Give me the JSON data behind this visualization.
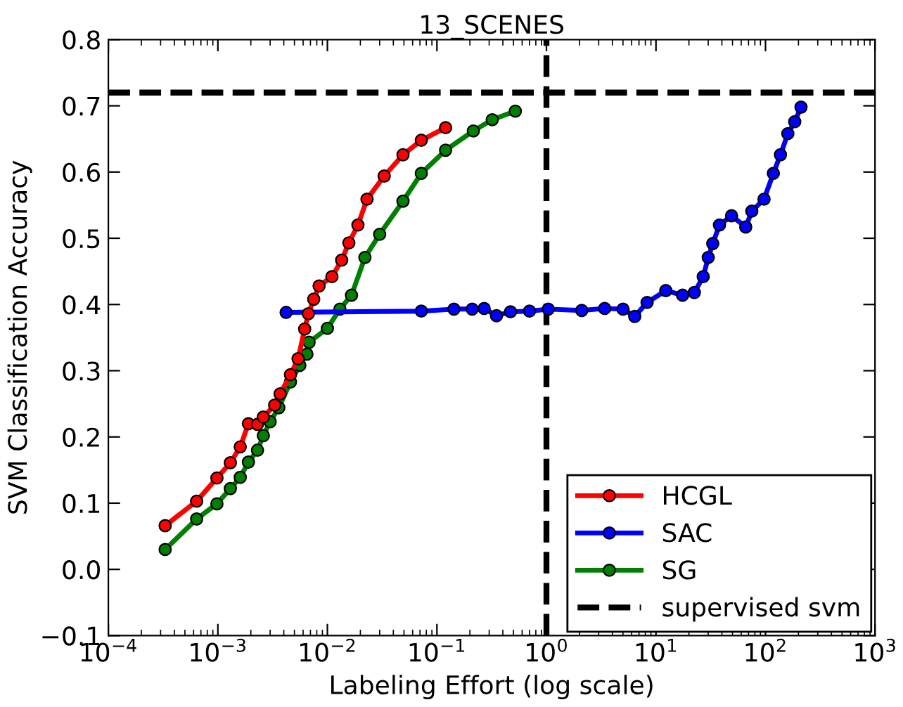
{
  "chart_data": {
    "type": "line",
    "title": "13_SCENES",
    "xlabel": "Labeling Effort (log scale)",
    "ylabel": "SVM Classification Accuracy",
    "log": "x",
    "marker": "circle",
    "line_style": "solid",
    "legend": "bottom right",
    "grid": false,
    "xlim": [
      0.0001,
      1000
    ],
    "ylim": [
      -0.1,
      0.8
    ],
    "xticks": [
      {
        "value": 0.0001,
        "label": "10$^{−4}$"
      },
      {
        "value": 0.001,
        "label": "10$^{−3}$"
      },
      {
        "value": 0.01,
        "label": "10$^{−2}$"
      },
      {
        "value": 0.1,
        "label": "10$^{−1}$"
      },
      {
        "value": 1,
        "label": "10$^{0}$"
      },
      {
        "value": 10,
        "label": "10$^{1}$"
      },
      {
        "value": 100,
        "label": "10$^{2}$"
      },
      {
        "value": 1000,
        "label": "10$^{3}$"
      }
    ],
    "yticks": [
      {
        "value": -0.1,
        "label": "−0.1"
      },
      {
        "value": 0.0,
        "label": "0.0"
      },
      {
        "value": 0.1,
        "label": "0.1"
      },
      {
        "value": 0.2,
        "label": "0.2"
      },
      {
        "value": 0.3,
        "label": "0.3"
      },
      {
        "value": 0.4,
        "label": "0.4"
      },
      {
        "value": 0.5,
        "label": "0.5"
      },
      {
        "value": 0.6,
        "label": "0.6"
      },
      {
        "value": 0.7,
        "label": "0.7"
      },
      {
        "value": 0.8,
        "label": "0.8"
      }
    ],
    "series": [
      {
        "name": "HCGL",
        "color": "#ff0000",
        "x": [
          0.00033,
          0.00064,
          0.00098,
          0.0013,
          0.0016,
          0.0019,
          0.0023,
          0.0026,
          0.0033,
          0.0037,
          0.0046,
          0.0054,
          0.0062,
          0.0067,
          0.0075,
          0.0084,
          0.011,
          0.0135,
          0.0157,
          0.019,
          0.023,
          0.033,
          0.049,
          0.072,
          0.12
        ],
        "values": [
          0.066,
          0.103,
          0.138,
          0.161,
          0.185,
          0.22,
          0.219,
          0.23,
          0.248,
          0.265,
          0.294,
          0.318,
          0.363,
          0.386,
          0.408,
          0.428,
          0.442,
          0.467,
          0.493,
          0.52,
          0.559,
          0.594,
          0.626,
          0.648,
          0.667
        ]
      },
      {
        "name": "SAC",
        "color": "#0000ff",
        "x": [
          0.0042,
          0.072,
          0.143,
          0.21,
          0.27,
          0.35,
          0.47,
          0.7,
          1.04,
          2.1,
          3.4,
          5.0,
          6.4,
          8.3,
          12.3,
          17.5,
          22.4,
          27,
          30,
          33,
          38,
          49,
          66,
          75,
          97,
          118,
          137,
          160,
          185,
          211
        ],
        "values": [
          0.388,
          0.39,
          0.393,
          0.393,
          0.394,
          0.383,
          0.389,
          0.39,
          0.393,
          0.391,
          0.394,
          0.393,
          0.382,
          0.403,
          0.421,
          0.414,
          0.418,
          0.442,
          0.471,
          0.492,
          0.52,
          0.534,
          0.517,
          0.541,
          0.559,
          0.598,
          0.626,
          0.658,
          0.676,
          0.698
        ]
      },
      {
        "name": "SG",
        "color": "#008000",
        "x": [
          0.00033,
          0.00064,
          0.00098,
          0.0013,
          0.0016,
          0.0019,
          0.0023,
          0.0026,
          0.003,
          0.0036,
          0.0046,
          0.0056,
          0.0065,
          0.0068,
          0.01,
          0.013,
          0.0166,
          0.022,
          0.03,
          0.049,
          0.072,
          0.12,
          0.215,
          0.32,
          0.52
        ],
        "values": [
          0.03,
          0.076,
          0.099,
          0.122,
          0.139,
          0.162,
          0.18,
          0.202,
          0.223,
          0.244,
          0.283,
          0.308,
          0.325,
          0.343,
          0.364,
          0.393,
          0.414,
          0.471,
          0.506,
          0.556,
          0.598,
          0.633,
          0.662,
          0.679,
          0.692
        ]
      }
    ],
    "ref_lines": [
      {
        "axis": "y",
        "value": 0.72,
        "label": "supervised svm",
        "color": "#000000",
        "line_style": "dashed"
      },
      {
        "axis": "x",
        "value": 1,
        "color": "#000000",
        "line_style": "dashed"
      }
    ]
  }
}
